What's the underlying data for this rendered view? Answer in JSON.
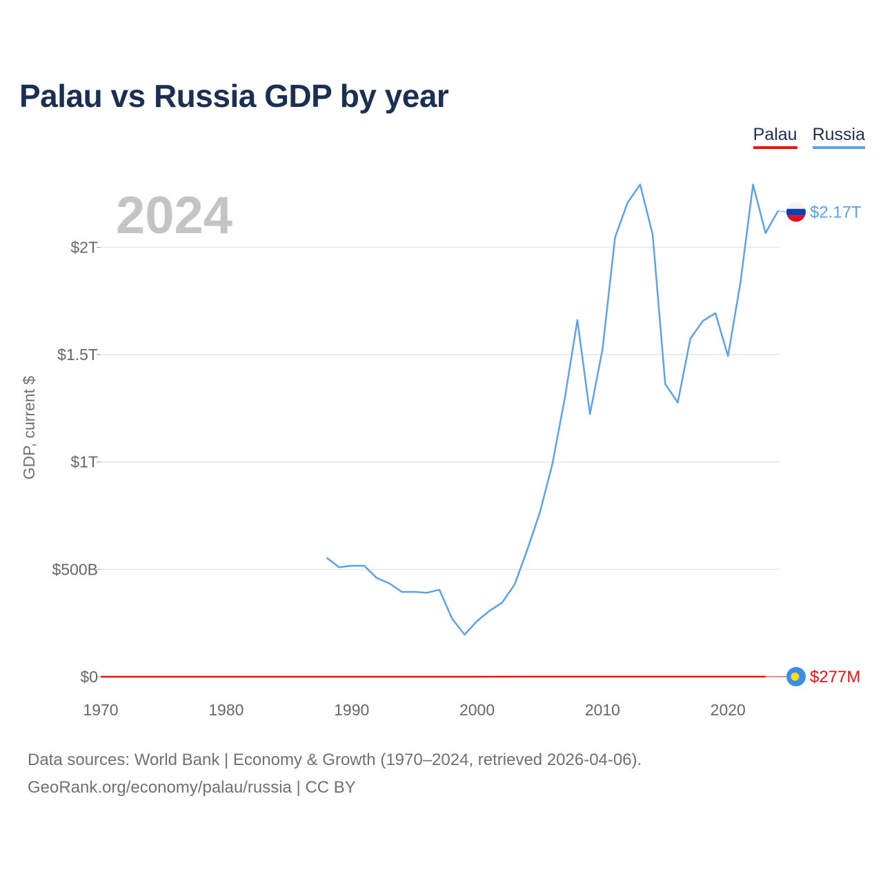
{
  "title": "Palau vs Russia GDP by year",
  "legend": [
    {
      "label": "Palau",
      "color": "#ee1111"
    },
    {
      "label": "Russia",
      "color": "#5ba3e6"
    }
  ],
  "year_watermark": "2024",
  "footer": {
    "line1": "Data sources: World Bank | Economy & Growth (1970–2024, retrieved 2026-04-06).",
    "line2": "GeoRank.org/economy/palau/russia | CC BY"
  },
  "chart_data": {
    "type": "line",
    "title": "Palau vs Russia GDP by year",
    "xlabel": "",
    "ylabel": "GDP, current $",
    "xlim": [
      1970,
      2024
    ],
    "ylim": [
      0,
      2300
    ],
    "value_unit": "billions of current US$",
    "x_ticks": [
      1970,
      1980,
      1990,
      2000,
      2010,
      2020
    ],
    "y_ticks": [
      {
        "value": 0,
        "label": "$0"
      },
      {
        "value": 500,
        "label": "$500B"
      },
      {
        "value": 1000,
        "label": "$1T"
      },
      {
        "value": 1500,
        "label": "$1.5T"
      },
      {
        "value": 2000,
        "label": "$2T"
      }
    ],
    "grid": true,
    "series": [
      {
        "name": "Palau",
        "color": "#ee1111",
        "end_label": "$277M",
        "x": [
          1970,
          1975,
          1980,
          1985,
          1990,
          1995,
          2000,
          2005,
          2010,
          2015,
          2020,
          2023
        ],
        "values": [
          0.02,
          0.03,
          0.05,
          0.06,
          0.08,
          0.11,
          0.15,
          0.18,
          0.19,
          0.28,
          0.25,
          0.277
        ]
      },
      {
        "name": "Russia",
        "color": "#5ba3e6",
        "end_label": "$2.17T",
        "x": [
          1988,
          1989,
          1990,
          1991,
          1992,
          1993,
          1994,
          1995,
          1996,
          1997,
          1998,
          1999,
          2000,
          2001,
          2002,
          2003,
          2004,
          2005,
          2006,
          2007,
          2008,
          2009,
          2010,
          2011,
          2012,
          2013,
          2014,
          2015,
          2016,
          2017,
          2018,
          2019,
          2020,
          2021,
          2022,
          2023,
          2024
        ],
        "values": [
          555,
          510,
          517,
          517,
          460,
          435,
          395,
          395,
          391,
          405,
          271,
          196,
          260,
          307,
          345,
          430,
          591,
          764,
          990,
          1300,
          1661,
          1223,
          1525,
          2046,
          2208,
          2292,
          2059,
          1363,
          1277,
          1574,
          1657,
          1693,
          1493,
          1837,
          2292,
          2066,
          2170
        ]
      }
    ]
  }
}
